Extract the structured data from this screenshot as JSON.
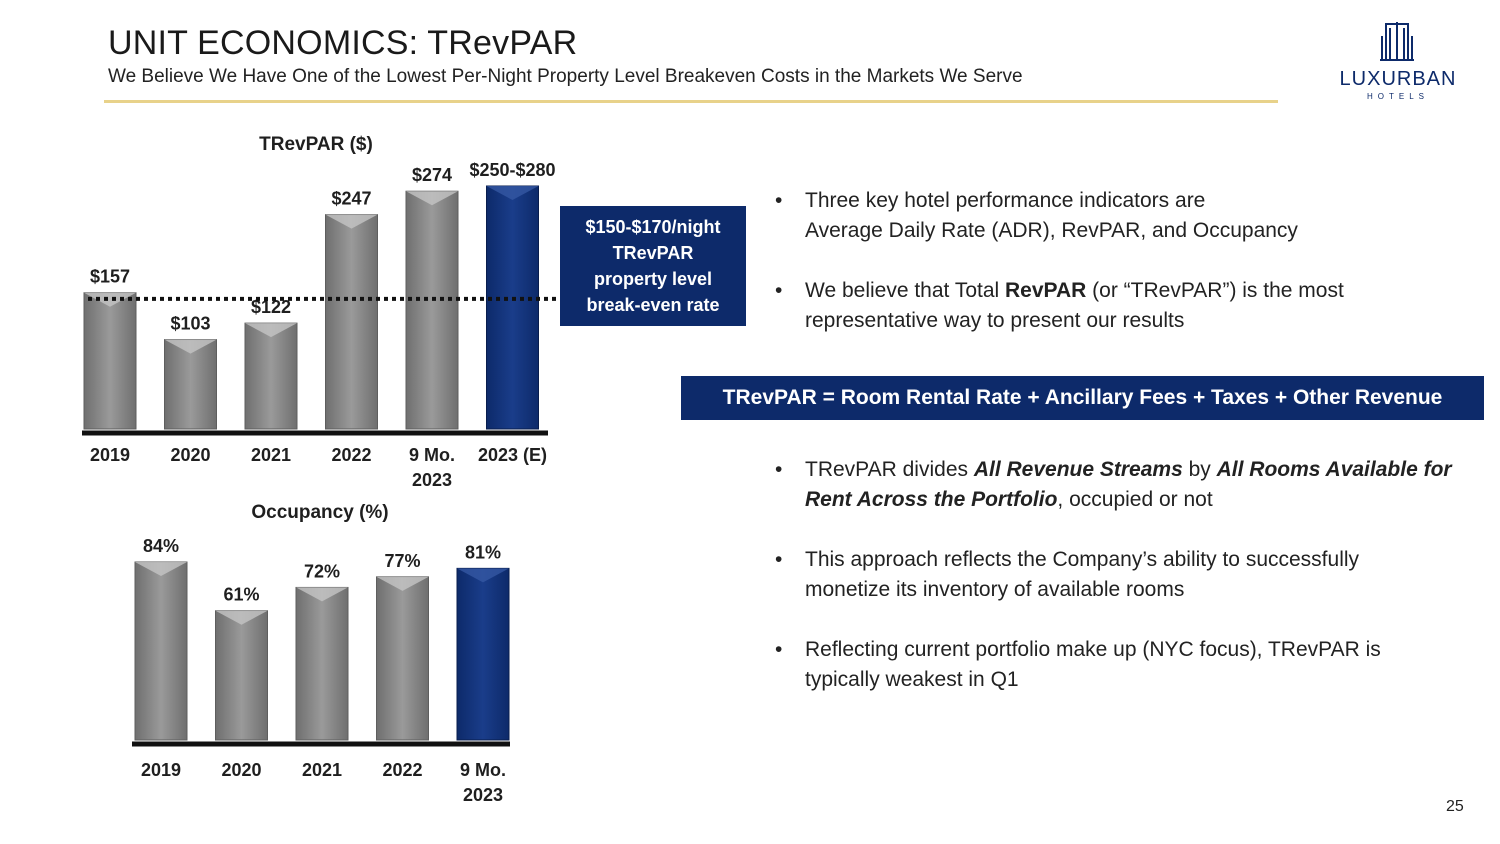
{
  "header": {
    "title": "UNIT ECONOMICS: TRevPAR",
    "subtitle": "We Believe We Have One of the Lowest Per-Night Property Level Breakeven Costs in the Markets We Serve"
  },
  "logo": {
    "name": "LUXURBAN",
    "tagline": "HOTELS",
    "icon": "building-icon"
  },
  "colors": {
    "navy": "#0d2a6a",
    "gray_bar": "#8a8a8a",
    "gold_rule": "#e8d28a"
  },
  "chart_data": [
    {
      "type": "bar",
      "title": "TRevPAR ($)",
      "categories": [
        "2019",
        "2020",
        "2021",
        "2022",
        "9 Mo. 2023",
        "2023 (E)"
      ],
      "values": [
        157,
        103,
        122,
        247,
        274,
        280
      ],
      "value_labels": [
        "$157",
        "$103",
        "$122",
        "$247",
        "$274",
        "$250-$280"
      ],
      "highlight": [
        false,
        false,
        false,
        false,
        false,
        true
      ],
      "reference_line": 150,
      "ylim": [
        0,
        280
      ]
    },
    {
      "type": "bar",
      "title": "Occupancy (%)",
      "categories": [
        "2019",
        "2020",
        "2021",
        "2022",
        "9 Mo. 2023"
      ],
      "values": [
        84,
        61,
        72,
        77,
        81
      ],
      "value_labels": [
        "84%",
        "61%",
        "72%",
        "77%",
        "81%"
      ],
      "highlight": [
        false,
        false,
        false,
        false,
        true
      ],
      "ylim": [
        0,
        84
      ]
    }
  ],
  "callout": {
    "lines": [
      "$150-$170/night",
      "TRevPAR",
      "property level",
      "break-even rate"
    ]
  },
  "bullets_top": [
    {
      "bullet": "•",
      "html": "Three key hotel performance indicators are<br>Average Daily Rate (ADR), RevPAR, and Occupancy"
    },
    {
      "bullet": "•",
      "html": "We believe that Total <b>RevPAR</b> (or “TRevPAR”) is the most representative way to present our results"
    }
  ],
  "formula": "TRevPAR = Room Rental Rate + Ancillary Fees + Taxes + Other Revenue",
  "bullets_bottom": [
    {
      "bullet": "•",
      "html": "TRevPAR divides <b><i>All Revenue Streams</i></b> by <b><i>All Rooms Available for Rent Across the Portfolio</i></b>, occupied or not"
    },
    {
      "bullet": "•",
      "html": "This approach reflects the Company’s ability to successfully monetize its inventory of available rooms"
    },
    {
      "bullet": "•",
      "html": "Reflecting current portfolio make up (NYC focus), TRevPAR is typically weakest in Q1"
    }
  ],
  "page_number": "25"
}
